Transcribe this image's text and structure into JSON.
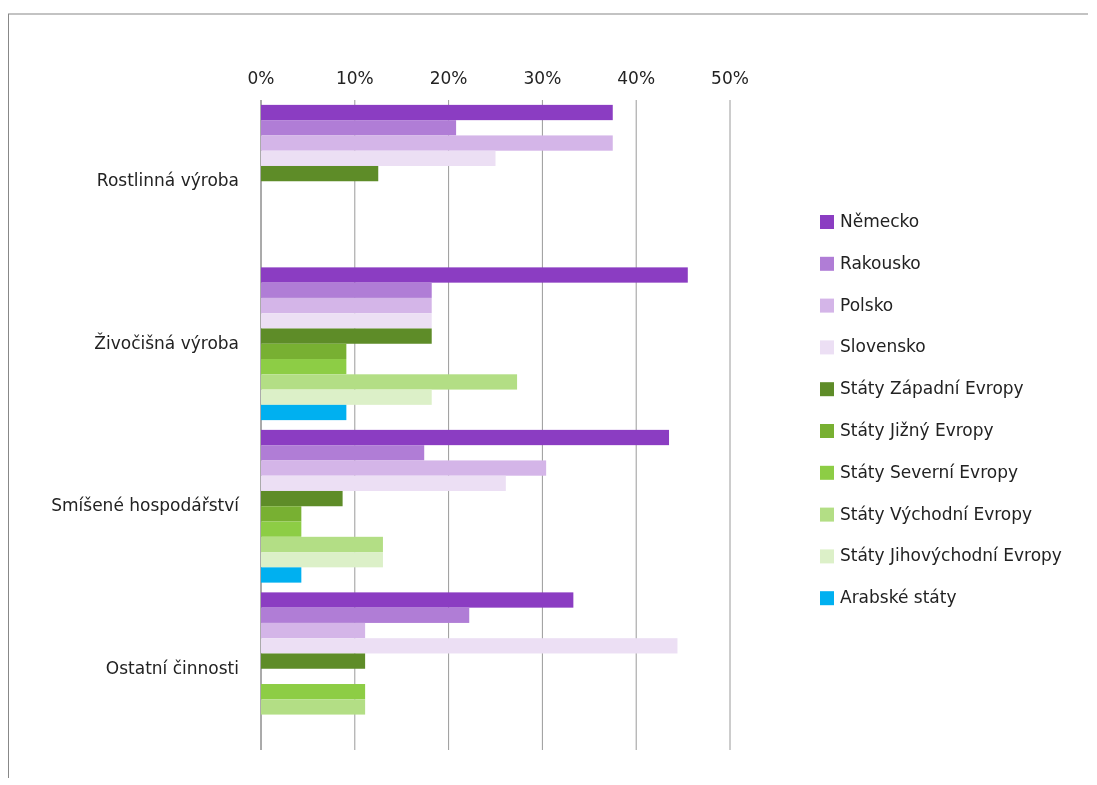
{
  "chart_data": {
    "type": "bar",
    "orientation": "horizontal",
    "categories": [
      "Rostlinná výroba",
      "Živočišná výroba",
      "Smíšené hospodářství",
      "Ostatní činnosti"
    ],
    "series": [
      {
        "name": "Německo",
        "color": "#8b3dc2",
        "values": [
          37.5,
          45.5,
          43.5,
          33.3
        ]
      },
      {
        "name": "Rakousko",
        "color": "#b07dd6",
        "values": [
          20.8,
          18.2,
          17.4,
          22.2
        ]
      },
      {
        "name": "Polsko",
        "color": "#d4b5e8",
        "values": [
          37.5,
          18.2,
          30.4,
          11.1
        ]
      },
      {
        "name": "Slovensko",
        "color": "#ecdff4",
        "values": [
          25,
          18.2,
          26.1,
          44.4
        ]
      },
      {
        "name": "Státy Západní Evropy",
        "color": "#5e8c28",
        "values": [
          12.5,
          18.2,
          8.7,
          11.1
        ]
      },
      {
        "name": "Státy Jižný Evropy",
        "color": "#78b032",
        "values": [
          0,
          9.1,
          4.3,
          0
        ]
      },
      {
        "name": "Státy Severní Evropy",
        "color": "#8dcd45",
        "values": [
          0,
          9.1,
          4.3,
          11.1
        ]
      },
      {
        "name": "Státy Východní Evropy",
        "color": "#b3de85",
        "values": [
          0,
          27.3,
          13,
          11.1
        ]
      },
      {
        "name": "Státy Jihovýchodní Evropy",
        "color": "#dcf0c8",
        "values": [
          0,
          18.2,
          13,
          0
        ]
      },
      {
        "name": "Arabské státy",
        "color": "#00b0f0",
        "values": [
          0,
          9.1,
          4.3,
          0
        ]
      }
    ],
    "xlim": [
      0,
      50
    ],
    "xticks": [
      {
        "value": 0,
        "label": "0%"
      },
      {
        "value": 10,
        "label": "10%"
      },
      {
        "value": 20,
        "label": "20%"
      },
      {
        "value": 30,
        "label": "30%"
      },
      {
        "value": 40,
        "label": "40%"
      },
      {
        "value": 50,
        "label": "50%"
      }
    ],
    "grid": "x",
    "legend": "right"
  }
}
